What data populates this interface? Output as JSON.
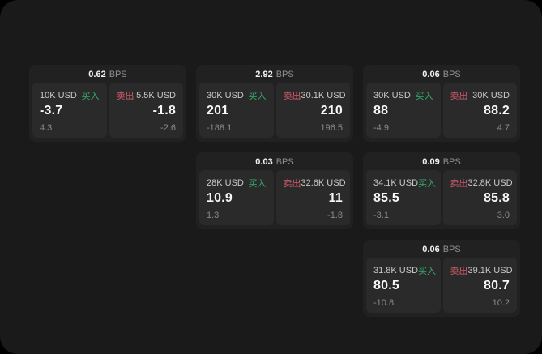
{
  "labels": {
    "buy": "买入",
    "sell": "卖出",
    "bps_unit": "BPS"
  },
  "colors": {
    "buy": "#35ab6d",
    "sell": "#d35b6a",
    "page_bg": "#1a1a1a",
    "card_bg": "#212121",
    "tile_bg": "#2a2a2a"
  },
  "cards": [
    {
      "bps": "0.62",
      "buy": {
        "size": "10K USD",
        "value": "-3.7",
        "sub": "4.3"
      },
      "sell": {
        "size": "5.5K USD",
        "value": "-1.8",
        "sub": "-2.6"
      }
    },
    {
      "bps": "2.92",
      "buy": {
        "size": "30K USD",
        "value": "201",
        "sub": "-188.1"
      },
      "sell": {
        "size": "30.1K USD",
        "value": "210",
        "sub": "196.5"
      }
    },
    {
      "bps": "0.06",
      "buy": {
        "size": "30K USD",
        "value": "88",
        "sub": "-4.9"
      },
      "sell": {
        "size": "30K USD",
        "value": "88.2",
        "sub": "4.7"
      }
    },
    {
      "bps": "0.03",
      "buy": {
        "size": "28K USD",
        "value": "10.9",
        "sub": "1.3"
      },
      "sell": {
        "size": "32.6K USD",
        "value": "11",
        "sub": "-1.8"
      }
    },
    {
      "bps": "0.09",
      "buy": {
        "size": "34.1K USD",
        "value": "85.5",
        "sub": "-3.1"
      },
      "sell": {
        "size": "32.8K USD",
        "value": "85.8",
        "sub": "3.0"
      }
    },
    {
      "bps": "0.06",
      "buy": {
        "size": "31.8K USD",
        "value": "80.5",
        "sub": "-10.8"
      },
      "sell": {
        "size": "39.1K USD",
        "value": "80.7",
        "sub": "10.2"
      }
    }
  ]
}
